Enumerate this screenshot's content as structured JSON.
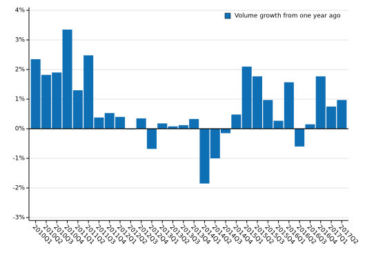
{
  "chart_data": {
    "type": "bar",
    "categories": [
      "2010Q1",
      "2010Q2",
      "2010Q3",
      "2010Q4",
      "2011Q1",
      "2011Q2",
      "2011Q3",
      "2011Q4",
      "2012Q1",
      "2012Q2",
      "2012Q3",
      "2012Q4",
      "2013Q1",
      "2013Q2",
      "2013Q3",
      "2013Q4",
      "2014Q1",
      "2014Q2",
      "2014Q3",
      "2014Q4",
      "2015Q1",
      "2015Q2",
      "2015Q3",
      "2015Q4",
      "2016Q1",
      "2016Q2",
      "2016Q3",
      "2016Q4",
      "2017Q1",
      "2017Q2"
    ],
    "series": [
      {
        "name": "Volume growth from one year ago",
        "color": "#0f6fb5",
        "values": [
          2.35,
          1.82,
          1.9,
          3.35,
          1.3,
          2.48,
          0.38,
          0.53,
          0.4,
          -0.02,
          0.35,
          -0.68,
          0.18,
          0.08,
          0.12,
          0.33,
          -1.85,
          -1.0,
          -0.15,
          0.48,
          2.1,
          1.77,
          0.97,
          0.27,
          1.57,
          -0.6,
          0.15,
          1.77,
          0.75,
          0.97
        ]
      }
    ],
    "ylim": [
      -3.1,
      4.1
    ],
    "yticks": [
      {
        "value": -3,
        "label": "-3%"
      },
      {
        "value": -2,
        "label": "-2%"
      },
      {
        "value": -1,
        "label": "-1%"
      },
      {
        "value": 0,
        "label": "0%"
      },
      {
        "value": 1,
        "label": "1%"
      },
      {
        "value": 2,
        "label": "2%"
      },
      {
        "value": 3,
        "label": "3%"
      },
      {
        "value": 4,
        "label": "4%"
      }
    ],
    "grid": true,
    "legend": "top-right"
  }
}
